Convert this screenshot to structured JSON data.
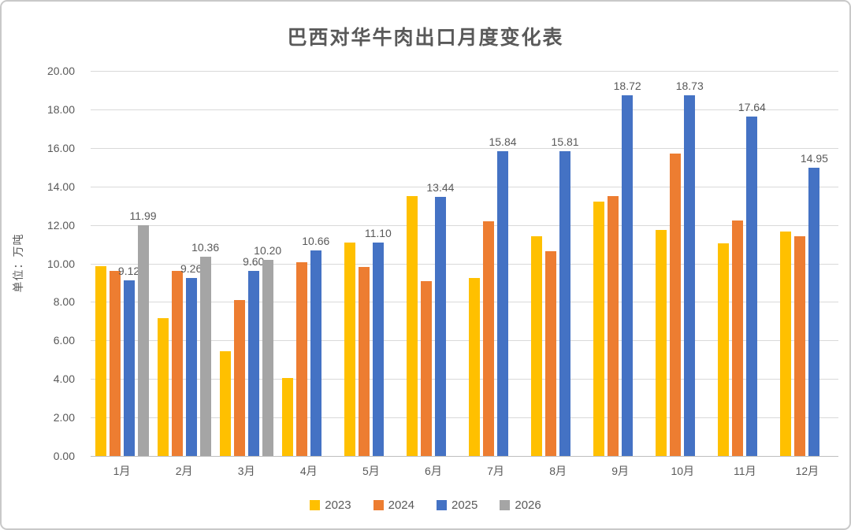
{
  "chart_data": {
    "type": "bar",
    "title": "巴西对华牛肉出口月度变化表",
    "ylabel": "单位：万吨",
    "xlabel": "",
    "categories": [
      "1月",
      "2月",
      "3月",
      "4月",
      "5月",
      "6月",
      "7月",
      "8月",
      "9月",
      "10月",
      "11月",
      "12月"
    ],
    "series": [
      {
        "name": "2023",
        "color": "#FFC000",
        "labeled": false,
        "values": [
          9.85,
          7.15,
          5.45,
          4.05,
          11.1,
          13.5,
          9.25,
          11.4,
          13.2,
          11.75,
          11.05,
          11.65
        ]
      },
      {
        "name": "2024",
        "color": "#ED7D31",
        "labeled": false,
        "values": [
          9.6,
          9.6,
          8.1,
          10.05,
          9.8,
          9.1,
          12.2,
          10.65,
          13.5,
          15.7,
          12.25,
          11.4
        ]
      },
      {
        "name": "2025",
        "color": "#4472C4",
        "labeled": true,
        "values": [
          9.12,
          9.26,
          9.6,
          10.66,
          11.1,
          13.44,
          15.84,
          15.81,
          18.72,
          18.73,
          17.64,
          14.95
        ]
      },
      {
        "name": "2026",
        "color": "#A5A5A5",
        "labeled": true,
        "values": [
          11.99,
          10.36,
          10.2,
          null,
          null,
          null,
          null,
          null,
          null,
          null,
          null,
          null
        ]
      }
    ],
    "ylim": [
      0,
      20
    ],
    "ytick_step": 2,
    "ytick_format": "0.00",
    "grid": true,
    "legend_position": "bottom",
    "colors": {
      "title_text": "#595959",
      "axis_text": "#595959",
      "data_label_text": "#595959",
      "gridline": "#d9d9d9",
      "axis_line": "#bfbfbf",
      "frame_border": "#c9c9c9",
      "background": "#ffffff"
    }
  }
}
